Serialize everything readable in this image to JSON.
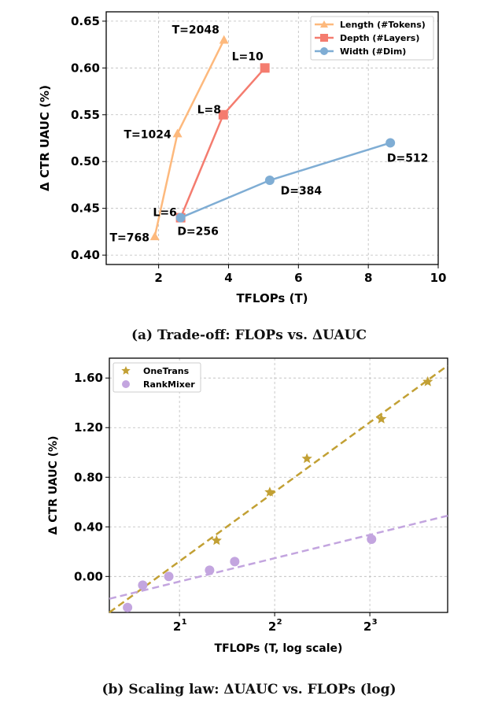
{
  "chart_data": [
    {
      "type": "line",
      "caption": "(a) Trade-off: FLOPs vs. ΔUAUC",
      "xlabel": "TFLOPs (T)",
      "ylabel": "Δ CTR UAUC (%)",
      "xlim": [
        0.5,
        10
      ],
      "ylim": [
        0.39,
        0.66
      ],
      "xticks": [
        2,
        4,
        6,
        8,
        10
      ],
      "yticks": [
        0.4,
        0.45,
        0.5,
        0.55,
        0.6,
        0.65
      ],
      "grid": true,
      "legend_position": "top-right",
      "series": [
        {
          "name": "Length (#Tokens)",
          "color": "#fdb97d",
          "marker": "triangle",
          "points": [
            {
              "x": 1.89,
              "y": 0.42,
              "label": "T=768"
            },
            {
              "x": 2.54,
              "y": 0.53,
              "label": "T=1024"
            },
            {
              "x": 3.87,
              "y": 0.63,
              "label": "T=2048"
            }
          ]
        },
        {
          "name": "Depth (#Layers)",
          "color": "#f47c6f",
          "marker": "square",
          "points": [
            {
              "x": 2.63,
              "y": 0.44,
              "label": "L=6"
            },
            {
              "x": 3.85,
              "y": 0.55,
              "label": "L=8"
            },
            {
              "x": 5.04,
              "y": 0.6,
              "label": "L=10"
            }
          ]
        },
        {
          "name": "Width (#Dim)",
          "color": "#7fadd4",
          "marker": "circle",
          "points": [
            {
              "x": 2.63,
              "y": 0.44,
              "label": "D=256"
            },
            {
              "x": 5.18,
              "y": 0.48,
              "label": "D=384"
            },
            {
              "x": 8.63,
              "y": 0.52,
              "label": "D=512"
            }
          ]
        }
      ]
    },
    {
      "type": "scatter",
      "caption": "(b) Scaling law: ΔUAUC vs. FLOPs (log)",
      "xlabel": "TFLOPs (T, log scale)",
      "ylabel": "Δ CTR UAUC (%)",
      "xscale": "log2",
      "xlim": [
        1.2,
        14.1
      ],
      "ylim": [
        -0.29,
        1.76
      ],
      "xticks": [
        {
          "value": 2,
          "label": "2",
          "exp": "1"
        },
        {
          "value": 4,
          "label": "2",
          "exp": "2"
        },
        {
          "value": 8,
          "label": "2",
          "exp": "3"
        }
      ],
      "yticks": [
        {
          "value": 0,
          "label": "0.00"
        },
        {
          "value": 0.4,
          "label": "0.40"
        },
        {
          "value": 0.8,
          "label": "0.80"
        },
        {
          "value": 1.2,
          "label": "1.20"
        },
        {
          "value": 1.6,
          "label": "1.60"
        }
      ],
      "grid": true,
      "legend_position": "top-left",
      "series": [
        {
          "name": "OneTrans",
          "color": "#c2a034",
          "marker": "star",
          "x": [
            2.62,
            3.86,
            5.06,
            8.7,
            12.2
          ],
          "y": [
            0.29,
            0.68,
            0.95,
            1.27,
            1.57
          ],
          "fit": {
            "x": [
              1.2,
              14.1
            ],
            "y": [
              -0.29,
              1.7
            ]
          }
        },
        {
          "name": "RankMixer",
          "color": "#c3a5df",
          "marker": "circle",
          "x": [
            1.37,
            1.53,
            1.85,
            2.49,
            2.99,
            8.1
          ],
          "y": [
            -0.25,
            -0.07,
            0.0,
            0.05,
            0.12,
            0.3
          ],
          "fit": {
            "x": [
              1.2,
              14.1
            ],
            "y": [
              -0.18,
              0.49
            ]
          }
        }
      ]
    }
  ]
}
